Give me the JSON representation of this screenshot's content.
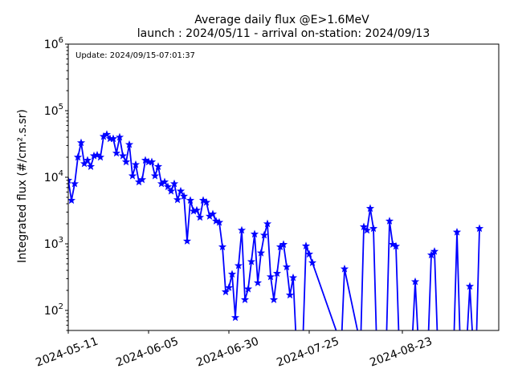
{
  "chart_data": {
    "type": "line",
    "title": "Average daily flux @E>1.6MeV",
    "subtitle": "launch : 2024/05/11 - arrival on-station: 2024/09/13",
    "annotation": "Update: 2024/09/15-07:01:37",
    "xlabel": "",
    "ylabel": "Integrated flux (#/cm².s.sr)",
    "y_scale": "log",
    "ylim": [
      50,
      1000000
    ],
    "xlim": [
      "2024-05-11",
      "2024-09-22"
    ],
    "grid": false,
    "line_color": "#0000ff",
    "marker": "star",
    "x_ticks": [
      "2024-05-11",
      "2024-06-05",
      "2024-06-30",
      "2024-07-25",
      "2024-08-23"
    ],
    "y_ticks": [
      {
        "value": 100,
        "label_base": "10",
        "label_exp": "2"
      },
      {
        "value": 1000,
        "label_base": "10",
        "label_exp": "3"
      },
      {
        "value": 10000,
        "label_base": "10",
        "label_exp": "4"
      },
      {
        "value": 100000,
        "label_base": "10",
        "label_exp": "5"
      },
      {
        "value": 1000000,
        "label_base": "10",
        "label_exp": "6"
      }
    ],
    "series": [
      {
        "points": [
          [
            "2024-05-11",
            9000
          ],
          [
            "2024-05-12",
            4500
          ],
          [
            "2024-05-13",
            8000
          ],
          [
            "2024-05-14",
            20000
          ],
          [
            "2024-05-15",
            33000
          ],
          [
            "2024-05-16",
            16000
          ],
          [
            "2024-05-17",
            18000
          ],
          [
            "2024-05-18",
            14500
          ],
          [
            "2024-05-19",
            21000
          ],
          [
            "2024-05-20",
            21500
          ],
          [
            "2024-05-21",
            20000
          ],
          [
            "2024-05-22",
            41000
          ],
          [
            "2024-05-23",
            44000
          ],
          [
            "2024-05-24",
            38000
          ],
          [
            "2024-05-25",
            38000
          ],
          [
            "2024-05-26",
            23000
          ],
          [
            "2024-05-27",
            40000
          ],
          [
            "2024-05-28",
            21000
          ],
          [
            "2024-05-29",
            17000
          ],
          [
            "2024-05-30",
            31000
          ],
          [
            "2024-05-31",
            10500
          ],
          [
            "2024-06-01",
            15500
          ],
          [
            "2024-06-02",
            8500
          ],
          [
            "2024-06-03",
            9200
          ],
          [
            "2024-06-04",
            18000
          ],
          [
            "2024-06-05",
            17000
          ],
          [
            "2024-06-06",
            17000
          ],
          [
            "2024-06-07",
            10500
          ],
          [
            "2024-06-08",
            14500
          ],
          [
            "2024-06-09",
            8000
          ],
          [
            "2024-06-10",
            8500
          ],
          [
            "2024-06-11",
            7200
          ],
          [
            "2024-06-12",
            6200
          ],
          [
            "2024-06-13",
            8000
          ],
          [
            "2024-06-14",
            4600
          ],
          [
            "2024-06-15",
            6200
          ],
          [
            "2024-06-16",
            5200
          ],
          [
            "2024-06-17",
            1100
          ],
          [
            "2024-06-18",
            4500
          ],
          [
            "2024-06-19",
            3100
          ],
          [
            "2024-06-20",
            3200
          ],
          [
            "2024-06-21",
            2500
          ],
          [
            "2024-06-22",
            4500
          ],
          [
            "2024-06-23",
            4200
          ],
          [
            "2024-06-24",
            2600
          ],
          [
            "2024-06-25",
            2800
          ],
          [
            "2024-06-26",
            2200
          ],
          [
            "2024-06-27",
            2100
          ],
          [
            "2024-06-28",
            900
          ],
          [
            "2024-06-29",
            190
          ],
          [
            "2024-06-30",
            220
          ],
          [
            "2024-07-01",
            350
          ],
          [
            "2024-07-02",
            78
          ],
          [
            "2024-07-03",
            470
          ],
          [
            "2024-07-04",
            1600
          ],
          [
            "2024-07-05",
            145
          ],
          [
            "2024-07-06",
            210
          ],
          [
            "2024-07-07",
            540
          ],
          [
            "2024-07-08",
            1400
          ],
          [
            "2024-07-09",
            260
          ],
          [
            "2024-07-10",
            730
          ],
          [
            "2024-07-11",
            1350
          ],
          [
            "2024-07-12",
            2000
          ],
          [
            "2024-07-13",
            320
          ],
          [
            "2024-07-14",
            145
          ],
          [
            "2024-07-15",
            360
          ],
          [
            "2024-07-16",
            900
          ],
          [
            "2024-07-17",
            980
          ],
          [
            "2024-07-18",
            450
          ],
          [
            "2024-07-19",
            170
          ],
          [
            "2024-07-20",
            310
          ],
          [
            "2024-07-21",
            30
          ],
          [
            "2024-07-23",
            30
          ],
          [
            "2024-07-24",
            930
          ],
          [
            "2024-07-25",
            700
          ],
          [
            "2024-07-26",
            520
          ],
          [
            "2024-08-04",
            30
          ],
          [
            "2024-08-05",
            420
          ],
          [
            "2024-08-10",
            30
          ],
          [
            "2024-08-11",
            1800
          ],
          [
            "2024-08-12",
            1600
          ],
          [
            "2024-08-13",
            3400
          ],
          [
            "2024-08-14",
            1700
          ],
          [
            "2024-08-15",
            30
          ],
          [
            "2024-08-18",
            30
          ],
          [
            "2024-08-19",
            2200
          ],
          [
            "2024-08-20",
            980
          ],
          [
            "2024-08-21",
            920
          ],
          [
            "2024-08-22",
            30
          ],
          [
            "2024-08-26",
            30
          ],
          [
            "2024-08-27",
            270
          ],
          [
            "2024-08-28",
            30
          ],
          [
            "2024-08-31",
            30
          ],
          [
            "2024-09-01",
            680
          ],
          [
            "2024-09-02",
            770
          ],
          [
            "2024-09-03",
            30
          ],
          [
            "2024-09-08",
            30
          ],
          [
            "2024-09-09",
            1500
          ],
          [
            "2024-09-10",
            30
          ],
          [
            "2024-09-12",
            30
          ],
          [
            "2024-09-13",
            230
          ],
          [
            "2024-09-14",
            30
          ],
          [
            "2024-09-15",
            30
          ],
          [
            "2024-09-16",
            1700
          ]
        ]
      }
    ]
  }
}
